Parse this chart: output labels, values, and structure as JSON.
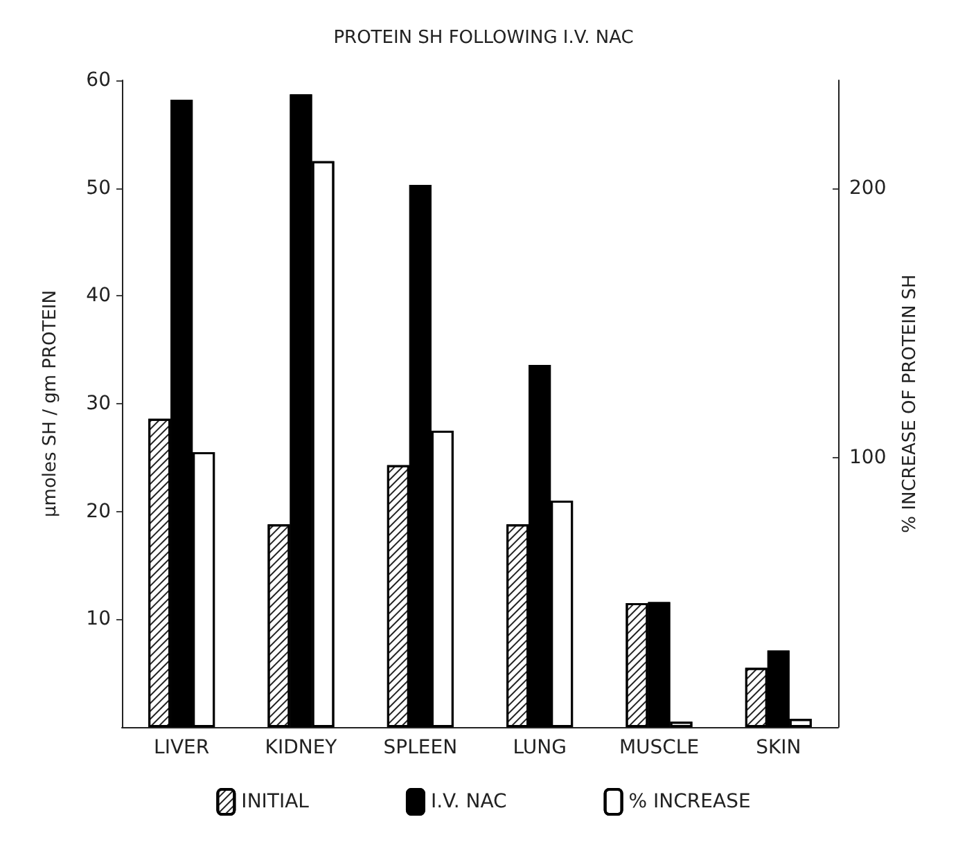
{
  "chart_data": {
    "type": "bar",
    "title": "PROTEIN SH FOLLOWING I.V. NAC",
    "ylabel": "µmoles SH / gm PROTEIN",
    "y2label": "% INCREASE OF PROTEIN SH",
    "categories": [
      "LIVER",
      "KIDNEY",
      "SPLEEN",
      "LUNG",
      "MUSCLE",
      "SKIN"
    ],
    "series": [
      {
        "name": "INITIAL",
        "color": "#ffffff",
        "values": [
          28.6,
          18.8,
          24.3,
          18.8,
          11.5,
          5.5
        ]
      },
      {
        "name": "I.V. NAC",
        "color": "#000000",
        "values": [
          58.2,
          58.7,
          50.3,
          33.6,
          11.6,
          7.1
        ]
      },
      {
        "name": "% INCREASE",
        "color": "#ffffff",
        "axis": "y2",
        "values": [
          102,
          210,
          110,
          84,
          2,
          3
        ]
      }
    ],
    "ylim": [
      0,
      60
    ],
    "yticks": [
      10,
      20,
      30,
      40,
      50,
      60
    ],
    "y2lim": [
      0,
      240
    ],
    "y2ticks": [
      100,
      200
    ],
    "grid": false,
    "legend": "bottom"
  }
}
